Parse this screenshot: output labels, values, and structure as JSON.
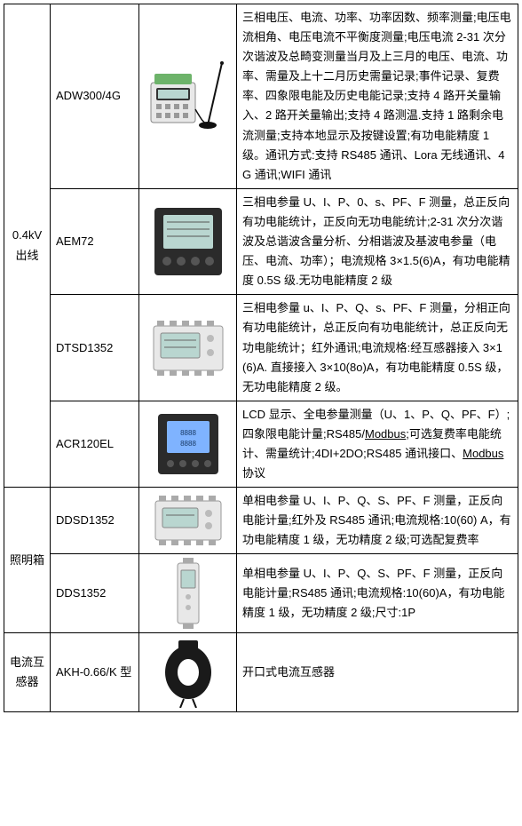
{
  "categories": [
    {
      "label": "0.4kV\n出线"
    },
    {
      "label": "照明箱"
    },
    {
      "label": "电流互\n感器"
    }
  ],
  "rows": [
    {
      "model": "ADW300/4G",
      "desc_parts": [
        {
          "t": "三相电压、电流、功率、功率因数、频率测量;电压电流相角、电压电流不平衡度测量;电压电流 2-31 次分次谐波及总畸变测量当月及上三月的电压、电流、功率、需量及上十二月历史需量记录;事件记录、复费率、四象限电能及历史电能记录;支持 4 路开关量输入、2 路开关量输出;支持 4 路测温.支持 1 路剩余电流测量;支持本地显示及按键设置;有功电能精度 1 级。通讯方式:支持 RS485 通讯、Lora 无线通讯、4G 通讯;WIFI 通讯"
        }
      ]
    },
    {
      "model": "AEM72",
      "desc_parts": [
        {
          "t": "三相电参量 U、I、P、0、s、PF、F 测量，总正反向有功电能统计，正反向无功电能统计;2-31 次分次谐波及总谐波含量分析、分相谐波及基波电参量（电压、电流、功率）；电流规格 3×1.5(6)A，有功电能精度 0.5S 级.无功电能精度 2 级"
        }
      ]
    },
    {
      "model": "DTSD1352",
      "desc_parts": [
        {
          "t": "三相电参量 u、I、P、Q、s、PF、F 测量，分相正向有功电能统计，总正反向有功电能统计，总正反向无功电能统计；红外通讯;电流规格:经互感器接入 3×1(6)A. 直接接入 3×10(8o)A，有功电能精度 0.5S 级，无功电能精度 2 级。"
        }
      ]
    },
    {
      "model": "ACR120EL",
      "desc_parts": [
        {
          "t": "LCD 显示、全电参量测量（U、1、P、Q、PF、F）;四象限电能计量;RS485/"
        },
        {
          "t": "Modbus",
          "u": true
        },
        {
          "t": ";可选复费率电能统计、需量统计;4DI+2DO;RS485 通讯接口、"
        },
        {
          "t": "Modbus",
          "u": true
        },
        {
          "t": " 协议"
        }
      ]
    },
    {
      "model": "DDSD1352",
      "desc_parts": [
        {
          "t": "单相电参量 U、I、P、Q、S、PF、F 测量，正反向电能计量;红外及 RS485 通讯;电流规格:10(60) A，有功电能精度 1 级，无功精度 2 级;可选配复费率"
        }
      ]
    },
    {
      "model": "DDS1352",
      "desc_parts": [
        {
          "t": "单相电参量 U、I、P、Q、S、PF、F 测量，正反向电能计量;RS485 通讯;电流规格:10(60)A，有功电能精度 1 级，无功精度 2 级;尺寸:1P"
        }
      ]
    },
    {
      "model": "AKH-0.66/K 型",
      "desc_parts": [
        {
          "t": "开口式电流互感器"
        }
      ]
    }
  ],
  "colors": {
    "border": "#000000",
    "text": "#000000",
    "bg": "#ffffff",
    "device_body": "#e8e8e8",
    "device_dark": "#2b2b2b",
    "lcd": "#b9d6d0",
    "lcd_blue": "#7fb3ff",
    "green_btn": "#6db36a",
    "antenna": "#111111"
  }
}
